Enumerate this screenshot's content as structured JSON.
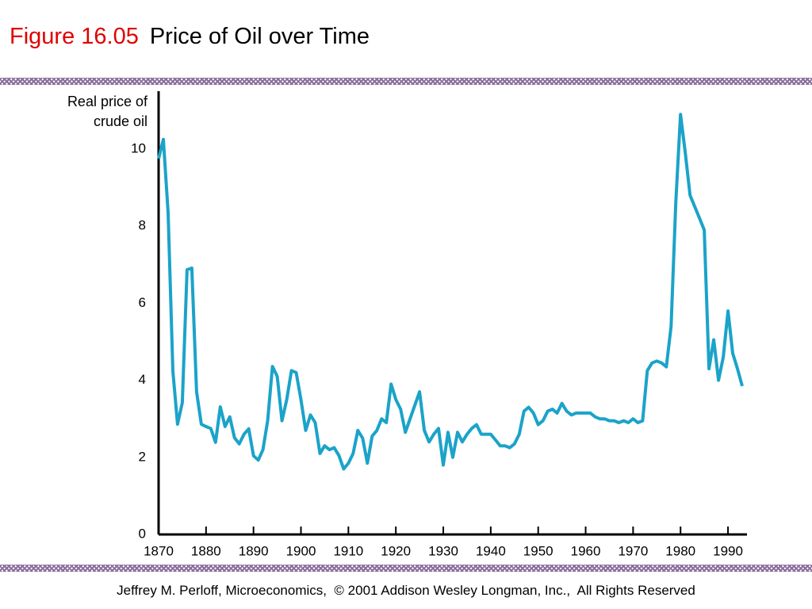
{
  "figure_label": "Figure 16.05",
  "chart_data": {
    "type": "line",
    "title": "Price of Oil over Time",
    "ylabel": "Real price of crude oil",
    "color": "#1ba3c9",
    "x": [
      1870,
      1871,
      1872,
      1873,
      1874,
      1875,
      1876,
      1877,
      1878,
      1879,
      1880,
      1881,
      1882,
      1883,
      1884,
      1885,
      1886,
      1887,
      1888,
      1889,
      1890,
      1891,
      1892,
      1893,
      1894,
      1895,
      1896,
      1897,
      1898,
      1899,
      1900,
      1901,
      1902,
      1903,
      1904,
      1905,
      1906,
      1907,
      1908,
      1909,
      1910,
      1911,
      1912,
      1913,
      1914,
      1915,
      1916,
      1917,
      1918,
      1919,
      1920,
      1921,
      1922,
      1923,
      1924,
      1925,
      1926,
      1927,
      1928,
      1929,
      1930,
      1931,
      1932,
      1933,
      1934,
      1935,
      1936,
      1937,
      1938,
      1939,
      1940,
      1941,
      1942,
      1943,
      1944,
      1945,
      1946,
      1947,
      1948,
      1949,
      1950,
      1951,
      1952,
      1953,
      1954,
      1955,
      1956,
      1957,
      1958,
      1959,
      1960,
      1961,
      1962,
      1963,
      1964,
      1965,
      1966,
      1967,
      1968,
      1969,
      1970,
      1971,
      1972,
      1973,
      1974,
      1975,
      1976,
      1977,
      1978,
      1979,
      1980,
      1981,
      1982,
      1983,
      1984,
      1985,
      1986,
      1987,
      1988,
      1989,
      1990,
      1991,
      1992,
      1993
    ],
    "values": [
      9.75,
      10.25,
      8.35,
      4.24,
      2.86,
      3.42,
      6.87,
      6.91,
      3.7,
      2.86,
      2.8,
      2.75,
      2.39,
      3.31,
      2.8,
      3.05,
      2.51,
      2.35,
      2.6,
      2.74,
      2.04,
      1.93,
      2.2,
      2.96,
      4.36,
      4.1,
      2.95,
      3.5,
      4.25,
      4.2,
      3.5,
      2.7,
      3.1,
      2.9,
      2.1,
      2.3,
      2.2,
      2.25,
      2.05,
      1.7,
      1.85,
      2.1,
      2.7,
      2.5,
      1.85,
      2.55,
      2.7,
      3.0,
      2.9,
      3.9,
      3.5,
      3.25,
      2.65,
      3.0,
      3.35,
      3.7,
      2.7,
      2.4,
      2.6,
      2.75,
      1.8,
      2.65,
      2.0,
      2.65,
      2.4,
      2.6,
      2.75,
      2.85,
      2.6,
      2.6,
      2.6,
      2.45,
      2.3,
      2.3,
      2.25,
      2.35,
      2.6,
      3.2,
      3.3,
      3.15,
      2.85,
      2.95,
      3.2,
      3.25,
      3.15,
      3.4,
      3.2,
      3.1,
      3.15,
      3.15,
      3.15,
      3.15,
      3.05,
      3.0,
      3.0,
      2.95,
      2.95,
      2.9,
      2.95,
      2.9,
      3.0,
      2.9,
      2.95,
      4.25,
      4.45,
      4.5,
      4.45,
      4.35,
      5.4,
      8.6,
      10.9,
      9.9,
      8.8,
      8.5,
      8.2,
      7.9,
      4.3,
      5.05,
      4.0,
      4.6,
      5.8,
      4.7,
      4.3,
      3.85
    ],
    "xlim": [
      1870,
      1994
    ],
    "ylim": [
      0,
      11.5
    ],
    "xticks": [
      1870,
      1880,
      1890,
      1900,
      1910,
      1920,
      1930,
      1940,
      1950,
      1960,
      1970,
      1980,
      1990
    ],
    "yticks": [
      0,
      2,
      4,
      6,
      8,
      10
    ]
  },
  "footer": "Jeffrey M. Perloff, Microeconomics,  © 2001 Addison Wesley Longman, Inc.,  All Rights Reserved"
}
